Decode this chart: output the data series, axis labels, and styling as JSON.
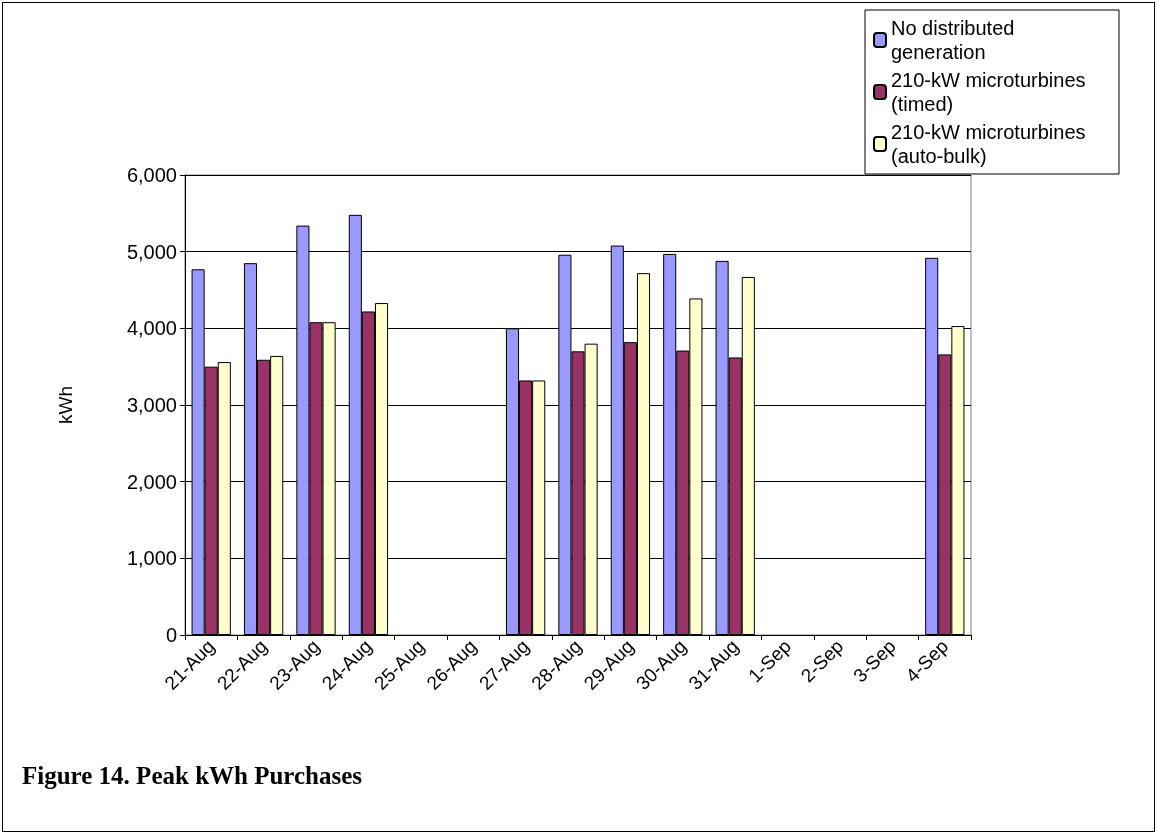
{
  "chart_data": {
    "type": "bar",
    "annotations": [
      "Figure 14.  Peak kWh Purchases"
    ],
    "ylabel": "kWh",
    "categories": [
      "21-Aug",
      "22-Aug",
      "23-Aug",
      "24-Aug",
      "25-Aug",
      "26-Aug",
      "27-Aug",
      "28-Aug",
      "29-Aug",
      "30-Aug",
      "31-Aug",
      "1-Sep",
      "2-Sep",
      "3-Sep",
      "4-Sep"
    ],
    "series": [
      {
        "name": "No distributed generation",
        "color": "#9999ff",
        "values": [
          4770,
          4850,
          5340,
          5480,
          null,
          null,
          4000,
          4960,
          5080,
          4970,
          4880,
          null,
          null,
          null,
          4920
        ]
      },
      {
        "name": "210-kW microturbines (timed)",
        "color": "#993366",
        "values": [
          3500,
          3590,
          4080,
          4220,
          null,
          null,
          3320,
          3700,
          3820,
          3710,
          3620,
          null,
          null,
          null,
          3660
        ]
      },
      {
        "name": "210-kW microturbines (auto-bulk)",
        "color": "#ffffcc",
        "values": [
          3560,
          3640,
          4080,
          4330,
          null,
          null,
          3320,
          3800,
          4720,
          4390,
          4670,
          null,
          null,
          null,
          4030
        ]
      }
    ],
    "ylim": [
      0,
      6000
    ],
    "yticks": [
      0,
      {
        "value": 1000,
        "label": "1,000"
      },
      {
        "value": 2000,
        "label": "2,000"
      },
      {
        "value": 3000,
        "label": "3,000"
      },
      {
        "value": 4000,
        "label": "4,000"
      },
      {
        "value": 5000,
        "label": "5,000"
      },
      {
        "value": 6000,
        "label": "6,000"
      }
    ],
    "grid": "y",
    "legend": "top right"
  }
}
